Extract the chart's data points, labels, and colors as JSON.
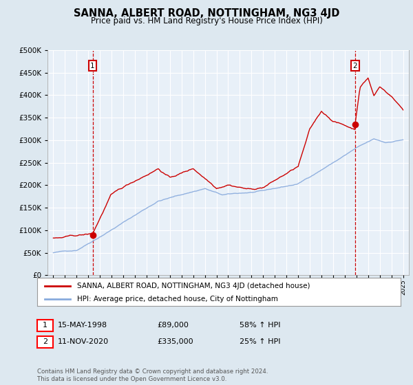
{
  "title": "SANNA, ALBERT ROAD, NOTTINGHAM, NG3 4JD",
  "subtitle": "Price paid vs. HM Land Registry's House Price Index (HPI)",
  "legend_line1": "SANNA, ALBERT ROAD, NOTTINGHAM, NG3 4JD (detached house)",
  "legend_line2": "HPI: Average price, detached house, City of Nottingham",
  "sale1_date": "15-MAY-1998",
  "sale1_price": "£89,000",
  "sale1_hpi": "58% ↑ HPI",
  "sale1_year": 1998.37,
  "sale1_value": 89000,
  "sale2_date": "11-NOV-2020",
  "sale2_price": "£335,000",
  "sale2_hpi": "25% ↑ HPI",
  "sale2_year": 2020.87,
  "sale2_value": 335000,
  "ylim": [
    0,
    500000
  ],
  "xlim": [
    1994.5,
    2025.5
  ],
  "red_color": "#cc0000",
  "blue_color": "#88aadd",
  "background_color": "#dde8f0",
  "plot_bg": "#e8f0f8",
  "grid_color": "#c8d8e8",
  "footnote": "Contains HM Land Registry data © Crown copyright and database right 2024.\nThis data is licensed under the Open Government Licence v3.0."
}
